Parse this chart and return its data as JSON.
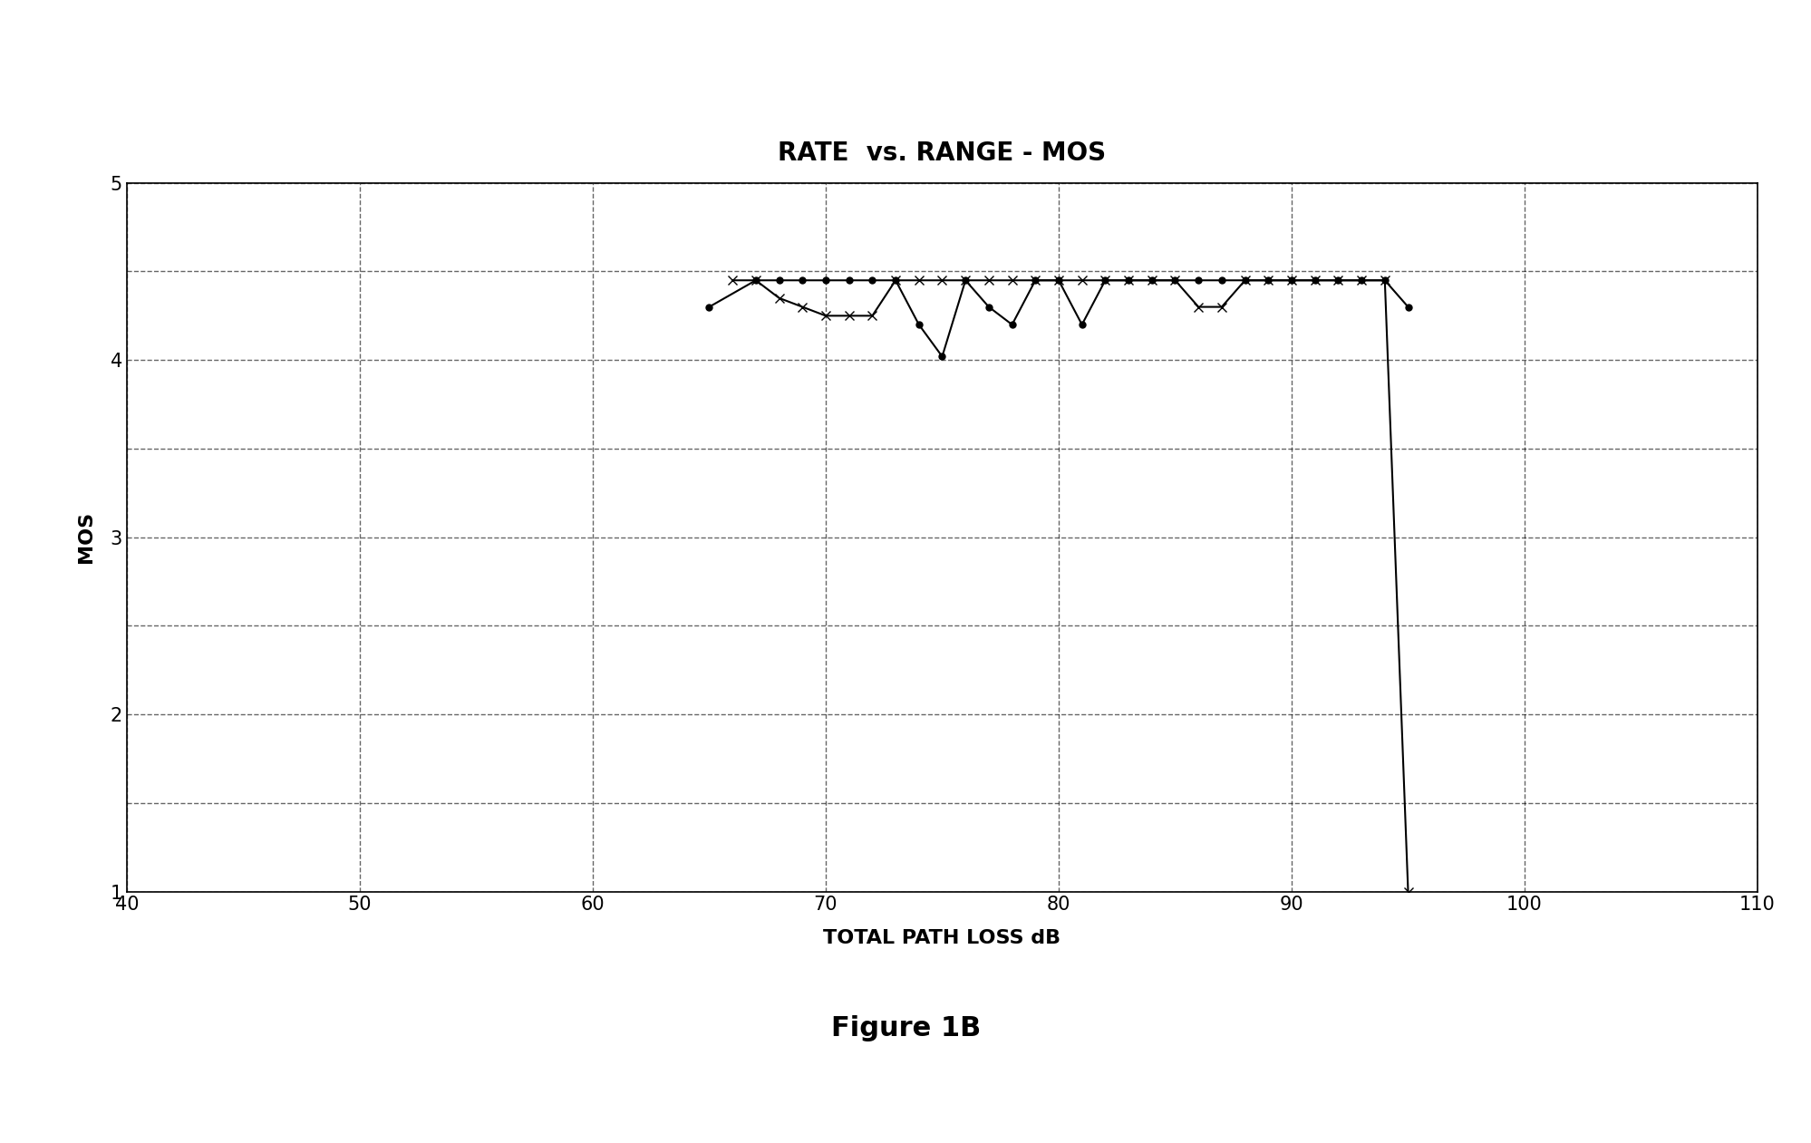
{
  "title": "RATE  vs. RANGE - MOS",
  "xlabel": "TOTAL PATH LOSS dB",
  "ylabel": "MOS",
  "xlim": [
    40,
    110
  ],
  "ylim": [
    1,
    5
  ],
  "xticks": [
    40,
    50,
    60,
    70,
    80,
    90,
    100,
    110
  ],
  "yticks": [
    1,
    1.5,
    2,
    2.5,
    3,
    3.5,
    4,
    4.5,
    5
  ],
  "ytick_labels": [
    "1",
    "",
    "2",
    "",
    "3",
    "",
    "4",
    "",
    "5"
  ],
  "figure_caption": "Figure 1B",
  "background_color": "#ffffff",
  "series_dot": {
    "x": [
      65,
      67,
      68,
      69,
      70,
      71,
      72,
      73,
      74,
      75,
      76,
      77,
      78,
      79,
      80,
      81,
      82,
      83,
      84,
      85,
      86,
      87,
      88,
      89,
      90,
      91,
      92,
      93,
      94,
      95
    ],
    "y": [
      4.3,
      4.45,
      4.45,
      4.45,
      4.45,
      4.45,
      4.45,
      4.45,
      4.2,
      4.02,
      4.45,
      4.3,
      4.2,
      4.45,
      4.45,
      4.2,
      4.45,
      4.45,
      4.45,
      4.45,
      4.45,
      4.45,
      4.45,
      4.45,
      4.45,
      4.45,
      4.45,
      4.45,
      4.45,
      4.3
    ],
    "color": "#000000",
    "marker": "o",
    "markersize": 5,
    "linewidth": 1.5
  },
  "series_cross": {
    "x": [
      66,
      67,
      68,
      69,
      70,
      71,
      72,
      73,
      74,
      75,
      76,
      77,
      78,
      79,
      80,
      81,
      82,
      83,
      84,
      85,
      86,
      87,
      88,
      89,
      90,
      91,
      92,
      93,
      94,
      95
    ],
    "y": [
      4.45,
      4.45,
      4.35,
      4.3,
      4.25,
      4.25,
      4.25,
      4.45,
      4.45,
      4.45,
      4.45,
      4.45,
      4.45,
      4.45,
      4.45,
      4.45,
      4.45,
      4.45,
      4.45,
      4.45,
      4.3,
      4.3,
      4.45,
      4.45,
      4.45,
      4.45,
      4.45,
      4.45,
      4.45,
      1.0
    ],
    "color": "#000000",
    "marker": "x",
    "markersize": 7,
    "linewidth": 1.5
  },
  "title_fontsize": 20,
  "axis_label_fontsize": 16,
  "tick_fontsize": 15,
  "caption_fontsize": 22
}
